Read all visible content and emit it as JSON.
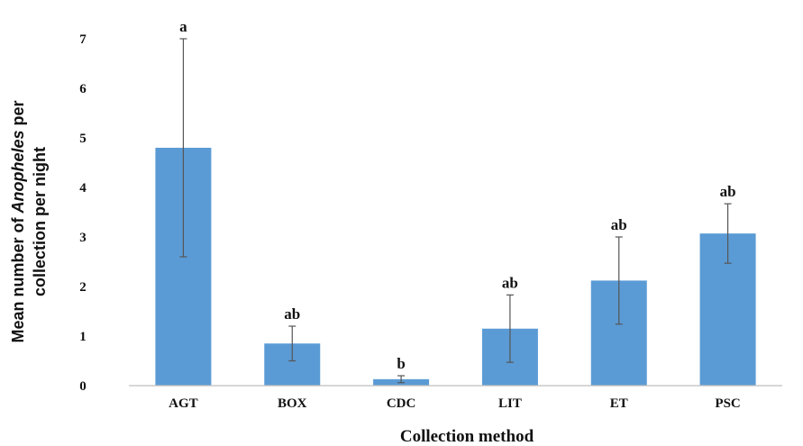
{
  "chart_data": {
    "type": "bar",
    "categories": [
      "AGT",
      "BOX",
      "CDC",
      "LIT",
      "ET",
      "PSC"
    ],
    "values": [
      4.8,
      0.85,
      0.13,
      1.15,
      2.12,
      3.07
    ],
    "errors": [
      2.2,
      0.35,
      0.07,
      0.68,
      0.88,
      0.6
    ],
    "significance_letters": [
      "a",
      "ab",
      "b",
      "ab",
      "ab",
      "ab"
    ],
    "yticks": [
      0,
      1,
      2,
      3,
      4,
      5,
      6,
      7
    ],
    "ylim": [
      0,
      7.2
    ],
    "xlabel": "Collection method",
    "ylabel_line1_pre": "Mean number of ",
    "ylabel_line1_italic": "Anopheles",
    "ylabel_line1_post": " per",
    "ylabel_line2": "collection per night",
    "bar_color": "#5b9bd5",
    "error_bar_color": "#555555",
    "grid": false
  }
}
